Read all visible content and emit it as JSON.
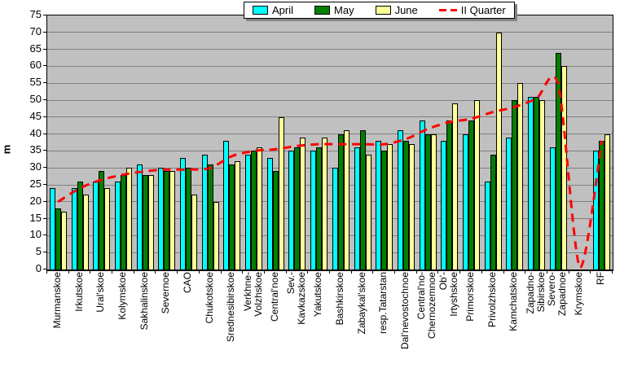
{
  "legend": {
    "items": [
      {
        "label": "April",
        "color": "#00FFFF",
        "marker": "swatch"
      },
      {
        "label": "May",
        "color": "#008000",
        "marker": "swatch"
      },
      {
        "label": "June",
        "color": "#FFFF99",
        "marker": "swatch"
      },
      {
        "label": "II Quarter",
        "color": "#FF0000",
        "marker": "dash"
      }
    ]
  },
  "chart_data": {
    "type": "bar",
    "title": "",
    "xlabel": "",
    "ylabel": "m",
    "ylim": [
      0,
      75
    ],
    "ytick_step": 5,
    "ytick_labels": [
      "0",
      "5",
      "10",
      "15",
      "20",
      "25",
      "30",
      "35",
      "40",
      "45",
      "50",
      "55",
      "60",
      "65",
      "70",
      "75"
    ],
    "grid": true,
    "legend_position": "top-center",
    "plot_bg_color": "#C0C0C0",
    "grid_color": "#808080",
    "categories": [
      "Murmanskoe",
      "Irkutskoe",
      "Ural'skoe",
      "Kolymskoe",
      "Sakhalinskoe",
      "Severnoe",
      "CAO",
      "Chukotskoe",
      "Srednesibirskoe",
      "Verkhne-\nVolzhskoe",
      "Central'noe",
      "Sev.-\nKavkazskoe",
      "Yakutskoe",
      "Bashkirskoe",
      "Zabaykal'skoe",
      "resp.Tatarstan",
      "Dal'nevostochnoe",
      "Central'no-\nChernozemnoe",
      "Ob'-\nIrtyshskoe",
      "Primorskoe",
      "Privolzhskoe",
      "Kamchatskoe",
      "Zapadno-\nSibirskoe",
      "Severo-\nZapadnoe",
      "Krymskoe",
      "RF"
    ],
    "series": [
      {
        "name": "April",
        "color": "#00FFFF",
        "values": [
          24,
          24,
          26,
          26,
          31,
          30,
          33,
          34,
          38,
          34,
          33,
          35,
          35,
          30,
          36,
          38,
          41,
          44,
          38,
          40,
          26,
          39,
          51,
          36,
          0,
          35
        ]
      },
      {
        "name": "May",
        "color": "#008000",
        "values": [
          18,
          26,
          29,
          28,
          28,
          29,
          30,
          31,
          31,
          35,
          29,
          36,
          36,
          40,
          41,
          35,
          38,
          40,
          44,
          44,
          34,
          50,
          51,
          64,
          0,
          38
        ]
      },
      {
        "name": "June",
        "color": "#FFFF99",
        "values": [
          17,
          22,
          24,
          30,
          28,
          29,
          22,
          20,
          32,
          36,
          45,
          39,
          39,
          41,
          34,
          37,
          37,
          40,
          49,
          50,
          70,
          55,
          50,
          60,
          0,
          40
        ]
      }
    ],
    "line_series": {
      "name": "II Quarter",
      "color": "#FF0000",
      "style": "dashed",
      "values": [
        20,
        24,
        26.5,
        28,
        29,
        29.5,
        29.5,
        30,
        33.5,
        35,
        35.5,
        36.5,
        37,
        37,
        37,
        37,
        38.5,
        41.5,
        43.5,
        44.5,
        46.5,
        48,
        50.5,
        54.5,
        0.5,
        38
      ]
    }
  }
}
